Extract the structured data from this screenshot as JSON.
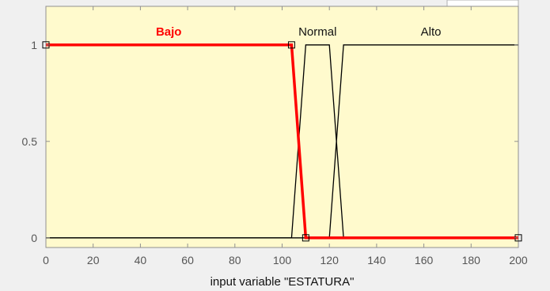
{
  "xlabel": "input variable \"ESTATURA\"",
  "colors": {
    "plot_background": "#fffacd",
    "window_background": "#f0f0f0",
    "selected_mf": "#ff0000",
    "unselected_mf": "#000000",
    "axis": "#909090"
  },
  "chart_data": {
    "type": "line",
    "title": "",
    "xlabel": "input variable \"ESTATURA\"",
    "ylabel": "",
    "xlim": [
      0,
      200
    ],
    "ylim": [
      -0.05,
      1.2
    ],
    "x_ticks": [
      0,
      20,
      40,
      60,
      80,
      100,
      120,
      140,
      160,
      180,
      200
    ],
    "y_ticks": [
      0,
      0.5,
      1
    ],
    "grid": false,
    "series": [
      {
        "name": "Bajo",
        "selected": true,
        "x": [
          0,
          104,
          110,
          200
        ],
        "y": [
          1,
          1,
          0,
          0
        ]
      },
      {
        "name": "Normal",
        "selected": false,
        "x": [
          0,
          104,
          110,
          120,
          126,
          200
        ],
        "y": [
          0,
          0,
          1,
          1,
          0,
          0
        ]
      },
      {
        "name": "Alto",
        "selected": false,
        "x": [
          0,
          120,
          126,
          200
        ],
        "y": [
          0,
          0,
          1,
          1
        ]
      }
    ]
  }
}
